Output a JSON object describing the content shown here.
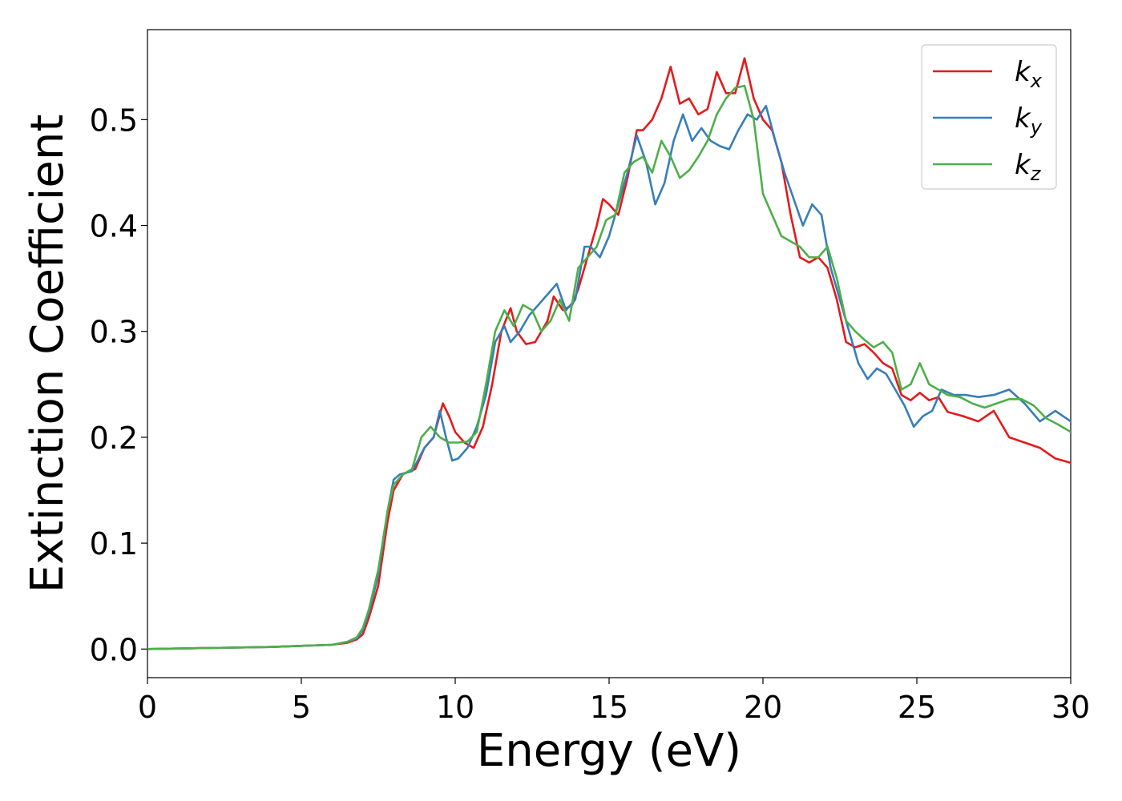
{
  "chart_data": {
    "type": "line",
    "title": "",
    "xlabel": "Energy (eV)",
    "ylabel": "Extinction Coefficient",
    "xlim": [
      0,
      30
    ],
    "ylim": [
      -0.027,
      0.585
    ],
    "xticks": [
      0,
      5,
      10,
      15,
      20,
      25,
      30
    ],
    "xtick_labels": [
      "0",
      "5",
      "10",
      "15",
      "20",
      "25",
      "30"
    ],
    "yticks": [
      0.0,
      0.1,
      0.2,
      0.3,
      0.4,
      0.5
    ],
    "ytick_labels": [
      "0.0",
      "0.1",
      "0.2",
      "0.3",
      "0.4",
      "0.5"
    ],
    "grid": false,
    "legend_position": "top-right",
    "series": [
      {
        "name": "k",
        "subscript": "x",
        "color": "#e41a1c",
        "x": [
          0,
          2,
          4,
          5,
          6,
          6.5,
          6.8,
          7.0,
          7.2,
          7.5,
          7.8,
          8.0,
          8.3,
          8.7,
          9.0,
          9.3,
          9.6,
          9.8,
          10.0,
          10.3,
          10.6,
          10.9,
          11.2,
          11.5,
          11.8,
          12.0,
          12.3,
          12.6,
          13.0,
          13.2,
          13.5,
          13.8,
          14.0,
          14.3,
          14.6,
          14.8,
          15.0,
          15.3,
          15.6,
          15.9,
          16.1,
          16.4,
          16.7,
          17.0,
          17.3,
          17.6,
          17.9,
          18.2,
          18.5,
          18.8,
          19.1,
          19.4,
          19.7,
          20.0,
          20.3,
          20.6,
          20.9,
          21.2,
          21.5,
          21.8,
          22.1,
          22.4,
          22.7,
          23.0,
          23.3,
          23.6,
          23.9,
          24.2,
          24.5,
          24.8,
          25.1,
          25.4,
          25.7,
          26.0,
          26.5,
          27.0,
          27.5,
          28.0,
          28.5,
          29.0,
          29.5,
          30.0
        ],
        "y": [
          0.0,
          0.001,
          0.002,
          0.003,
          0.004,
          0.006,
          0.009,
          0.014,
          0.03,
          0.06,
          0.12,
          0.15,
          0.165,
          0.17,
          0.19,
          0.2,
          0.232,
          0.22,
          0.205,
          0.195,
          0.19,
          0.21,
          0.25,
          0.3,
          0.322,
          0.3,
          0.288,
          0.29,
          0.31,
          0.333,
          0.32,
          0.325,
          0.34,
          0.37,
          0.4,
          0.425,
          0.42,
          0.41,
          0.445,
          0.49,
          0.49,
          0.5,
          0.52,
          0.55,
          0.515,
          0.52,
          0.505,
          0.51,
          0.545,
          0.525,
          0.525,
          0.558,
          0.52,
          0.5,
          0.49,
          0.46,
          0.41,
          0.37,
          0.365,
          0.37,
          0.36,
          0.33,
          0.29,
          0.285,
          0.288,
          0.28,
          0.27,
          0.265,
          0.24,
          0.235,
          0.242,
          0.235,
          0.238,
          0.224,
          0.22,
          0.215,
          0.225,
          0.2,
          0.195,
          0.19,
          0.18,
          0.176
        ]
      },
      {
        "name": "k",
        "subscript": "y",
        "color": "#377eb8",
        "x": [
          0,
          2,
          4,
          5,
          6,
          6.5,
          6.8,
          7.0,
          7.2,
          7.5,
          7.8,
          8.0,
          8.2,
          8.6,
          9.0,
          9.3,
          9.5,
          9.7,
          9.9,
          10.1,
          10.4,
          10.7,
          11.0,
          11.3,
          11.6,
          11.8,
          12.1,
          12.4,
          12.7,
          13.0,
          13.3,
          13.6,
          13.9,
          14.2,
          14.4,
          14.7,
          15.0,
          15.3,
          15.6,
          15.9,
          16.2,
          16.5,
          16.8,
          17.1,
          17.4,
          17.7,
          18.0,
          18.3,
          18.6,
          18.9,
          19.2,
          19.5,
          19.8,
          20.1,
          20.4,
          20.7,
          21.0,
          21.3,
          21.6,
          21.9,
          22.2,
          22.5,
          22.8,
          23.1,
          23.4,
          23.7,
          24.0,
          24.3,
          24.6,
          24.9,
          25.2,
          25.5,
          25.8,
          26.2,
          26.6,
          27.0,
          27.5,
          28.0,
          28.5,
          29.0,
          29.5,
          30.0
        ],
        "y": [
          0.0,
          0.001,
          0.002,
          0.003,
          0.004,
          0.007,
          0.01,
          0.018,
          0.035,
          0.07,
          0.13,
          0.16,
          0.165,
          0.168,
          0.19,
          0.2,
          0.225,
          0.2,
          0.178,
          0.18,
          0.19,
          0.21,
          0.24,
          0.29,
          0.305,
          0.29,
          0.3,
          0.315,
          0.325,
          0.335,
          0.345,
          0.32,
          0.33,
          0.38,
          0.38,
          0.37,
          0.39,
          0.42,
          0.45,
          0.485,
          0.46,
          0.42,
          0.44,
          0.48,
          0.505,
          0.48,
          0.492,
          0.48,
          0.475,
          0.472,
          0.49,
          0.505,
          0.5,
          0.513,
          0.48,
          0.45,
          0.425,
          0.4,
          0.42,
          0.41,
          0.36,
          0.33,
          0.3,
          0.27,
          0.255,
          0.265,
          0.26,
          0.245,
          0.23,
          0.21,
          0.22,
          0.225,
          0.245,
          0.24,
          0.24,
          0.238,
          0.24,
          0.245,
          0.232,
          0.215,
          0.225,
          0.215
        ]
      },
      {
        "name": "k",
        "subscript": "z",
        "color": "#4daf4a",
        "x": [
          0,
          2,
          4,
          5,
          6,
          6.5,
          6.8,
          7.0,
          7.2,
          7.5,
          7.8,
          8.0,
          8.3,
          8.6,
          8.9,
          9.2,
          9.5,
          9.8,
          10.1,
          10.4,
          10.7,
          11.0,
          11.3,
          11.6,
          11.9,
          12.2,
          12.5,
          12.8,
          13.1,
          13.4,
          13.7,
          14.0,
          14.3,
          14.6,
          14.9,
          15.2,
          15.5,
          15.8,
          16.1,
          16.4,
          16.7,
          17.0,
          17.3,
          17.6,
          17.9,
          18.2,
          18.5,
          18.8,
          19.1,
          19.4,
          19.7,
          20.0,
          20.3,
          20.6,
          20.9,
          21.2,
          21.5,
          21.8,
          22.1,
          22.4,
          22.7,
          23.0,
          23.3,
          23.6,
          23.9,
          24.2,
          24.5,
          24.8,
          25.1,
          25.4,
          25.7,
          26.0,
          26.4,
          26.8,
          27.2,
          27.6,
          28.0,
          28.4,
          28.8,
          29.2,
          29.6,
          30.0
        ],
        "y": [
          0.0,
          0.001,
          0.002,
          0.003,
          0.004,
          0.007,
          0.011,
          0.02,
          0.038,
          0.075,
          0.13,
          0.155,
          0.165,
          0.17,
          0.2,
          0.21,
          0.2,
          0.195,
          0.195,
          0.196,
          0.205,
          0.25,
          0.3,
          0.32,
          0.305,
          0.325,
          0.32,
          0.3,
          0.31,
          0.33,
          0.31,
          0.36,
          0.37,
          0.38,
          0.405,
          0.41,
          0.45,
          0.46,
          0.465,
          0.45,
          0.48,
          0.465,
          0.445,
          0.452,
          0.465,
          0.48,
          0.505,
          0.52,
          0.53,
          0.532,
          0.5,
          0.43,
          0.41,
          0.39,
          0.385,
          0.38,
          0.37,
          0.37,
          0.38,
          0.35,
          0.31,
          0.3,
          0.292,
          0.285,
          0.29,
          0.28,
          0.245,
          0.25,
          0.27,
          0.25,
          0.245,
          0.24,
          0.238,
          0.232,
          0.228,
          0.232,
          0.236,
          0.236,
          0.23,
          0.218,
          0.212,
          0.205
        ]
      }
    ]
  }
}
